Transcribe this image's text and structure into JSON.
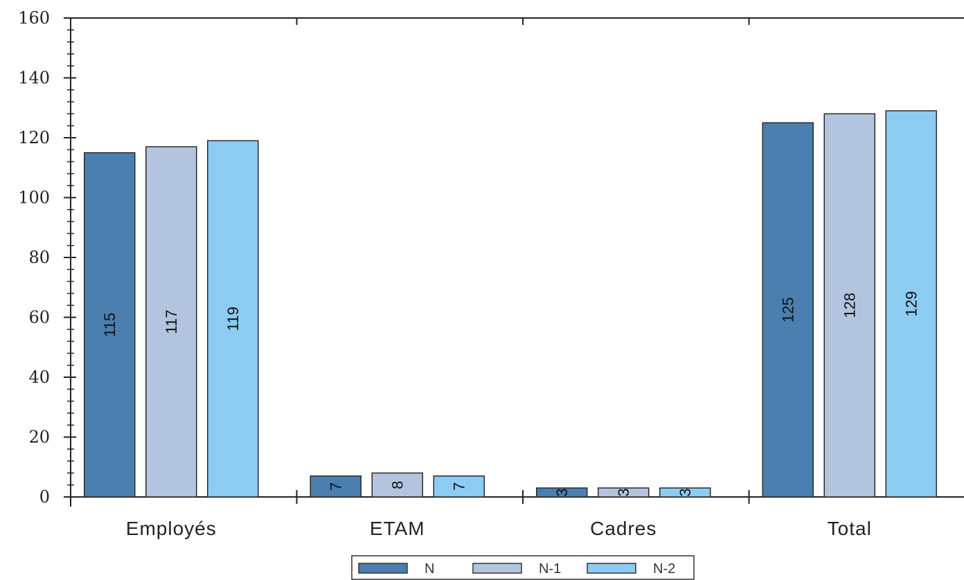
{
  "chart_data": {
    "type": "bar",
    "categories": [
      "Employés",
      "ETAM",
      "Cadres",
      "Total"
    ],
    "series": [
      {
        "name": "N",
        "color": "#4a7fb0",
        "values": [
          115,
          7,
          3,
          125
        ]
      },
      {
        "name": "N-1",
        "color": "#b3c4de",
        "values": [
          117,
          8,
          3,
          128
        ]
      },
      {
        "name": "N-2",
        "color": "#8ccbf2",
        "values": [
          119,
          7,
          3,
          129
        ]
      }
    ],
    "ylim": [
      0,
      160
    ],
    "yticks": [
      0,
      20,
      40,
      60,
      80,
      100,
      120,
      140,
      160
    ],
    "data_labels": "inside-rotated",
    "legend_position": "bottom-center",
    "grid": false
  }
}
